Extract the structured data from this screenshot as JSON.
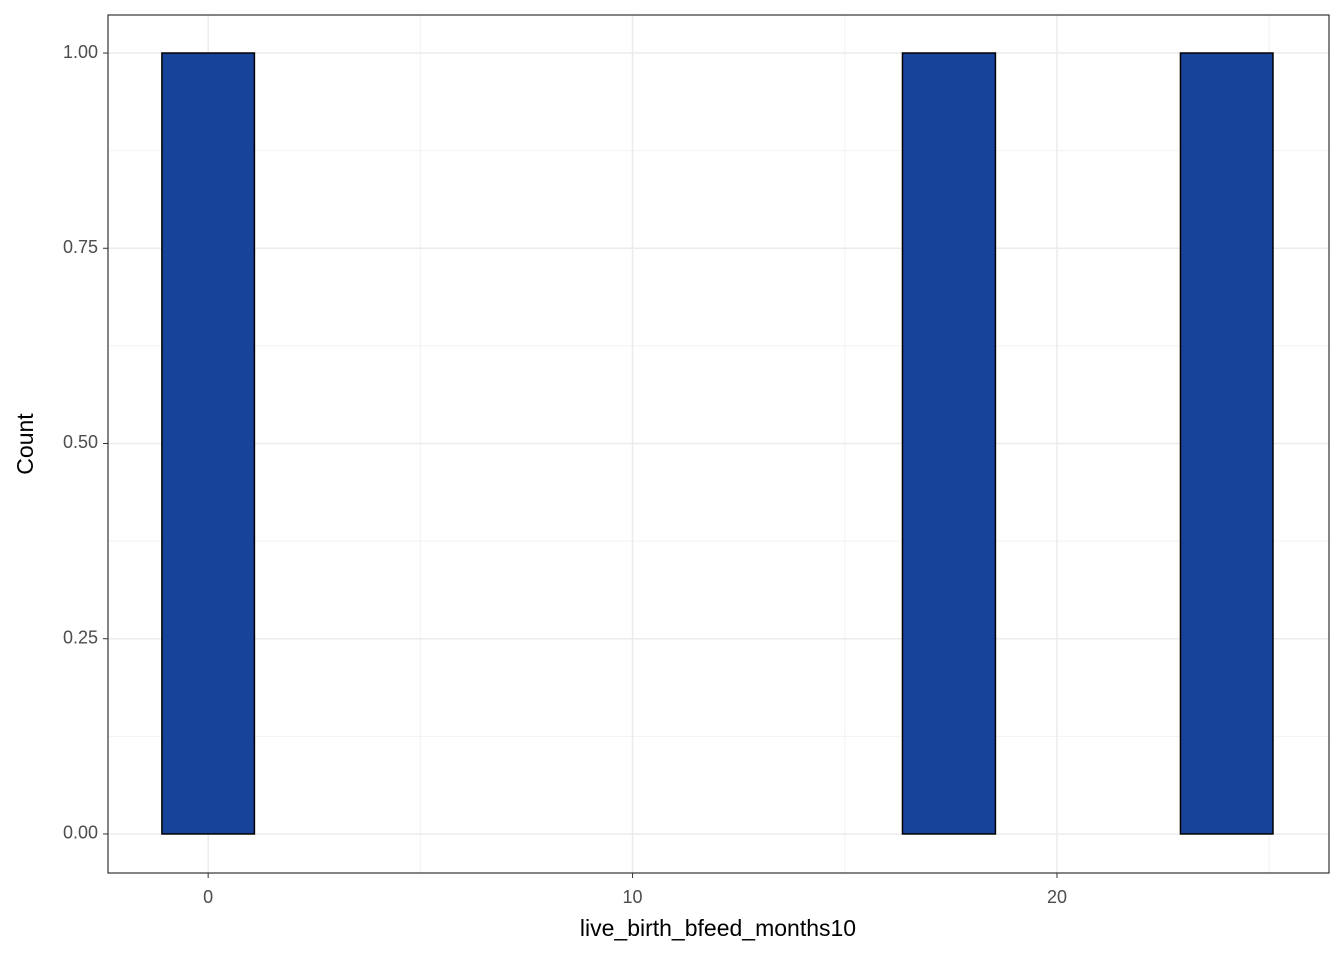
{
  "chart_data": {
    "type": "histogram",
    "x_label": "live_birth_bfeed_months10",
    "y_label": "Count",
    "bins": [
      -1.09,
      1.09,
      3.27,
      5.45,
      7.64,
      9.82,
      12,
      14.18,
      16.36,
      18.55,
      20.73,
      22.91,
      25.09
    ],
    "counts": [
      1,
      0,
      0,
      0,
      0,
      0,
      0,
      0,
      1,
      0,
      0,
      1
    ],
    "color": "#17439b",
    "xlim": [
      -2.36,
      26.41
    ],
    "ylim": [
      -0.05,
      1.0487
    ],
    "xticks": [
      0,
      10,
      20
    ],
    "yticks": [
      {
        "value": 0,
        "label": "0.00"
      },
      0.25,
      {
        "value": 0.5,
        "label": "0.50"
      },
      0.75,
      {
        "value": 1,
        "label": "1.00"
      }
    ],
    "grid": true
  }
}
